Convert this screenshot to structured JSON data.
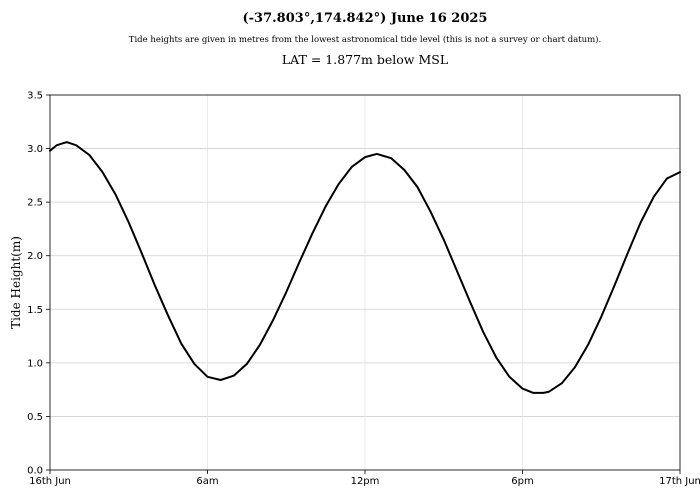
{
  "header": {
    "title": "(-37.803°,174.842°) June 16 2025",
    "subtitle": "Tide heights are given in metres from the lowest astronomical tide level (this is not a survey or chart datum).",
    "lat_note": "LAT = 1.877m below MSL"
  },
  "chart_data": {
    "type": "line",
    "title": "(-37.803°,174.842°) June 16 2025",
    "xlabel": "",
    "ylabel": "Tide Height(m)",
    "xlim": [
      0,
      24
    ],
    "ylim": [
      0,
      3.5
    ],
    "grid": true,
    "x_ticks": [
      {
        "value": 0,
        "label": "16th Jun"
      },
      {
        "value": 6,
        "label": "6am"
      },
      {
        "value": 12,
        "label": "12pm"
      },
      {
        "value": 18,
        "label": "6pm"
      },
      {
        "value": 24,
        "label": "17th Jun"
      }
    ],
    "y_ticks": [
      {
        "value": 0.0,
        "label": "0.0"
      },
      {
        "value": 0.5,
        "label": "0.5"
      },
      {
        "value": 1.0,
        "label": "1.0"
      },
      {
        "value": 1.5,
        "label": "1.5"
      },
      {
        "value": 2.0,
        "label": "2.0"
      },
      {
        "value": 2.5,
        "label": "2.5"
      },
      {
        "value": 3.0,
        "label": "3.0"
      },
      {
        "value": 3.5,
        "label": "3.5"
      }
    ],
    "series": [
      {
        "line_color": "#000000",
        "points": [
          [
            0.0,
            2.98
          ],
          [
            0.25,
            3.03
          ],
          [
            0.5,
            3.05
          ],
          [
            0.65,
            3.06
          ],
          [
            1.0,
            3.03
          ],
          [
            1.5,
            2.94
          ],
          [
            2.0,
            2.78
          ],
          [
            2.5,
            2.57
          ],
          [
            3.0,
            2.31
          ],
          [
            3.5,
            2.02
          ],
          [
            4.0,
            1.72
          ],
          [
            4.5,
            1.44
          ],
          [
            5.0,
            1.18
          ],
          [
            5.5,
            0.99
          ],
          [
            6.0,
            0.87
          ],
          [
            6.5,
            0.84
          ],
          [
            7.0,
            0.88
          ],
          [
            7.5,
            0.99
          ],
          [
            8.0,
            1.17
          ],
          [
            8.5,
            1.4
          ],
          [
            9.0,
            1.66
          ],
          [
            9.5,
            1.94
          ],
          [
            10.0,
            2.21
          ],
          [
            10.5,
            2.46
          ],
          [
            11.0,
            2.67
          ],
          [
            11.5,
            2.83
          ],
          [
            12.0,
            2.92
          ],
          [
            12.45,
            2.95
          ],
          [
            13.0,
            2.91
          ],
          [
            13.5,
            2.8
          ],
          [
            14.0,
            2.64
          ],
          [
            14.5,
            2.41
          ],
          [
            15.0,
            2.15
          ],
          [
            15.5,
            1.86
          ],
          [
            16.0,
            1.57
          ],
          [
            16.5,
            1.29
          ],
          [
            17.0,
            1.05
          ],
          [
            17.5,
            0.87
          ],
          [
            18.0,
            0.76
          ],
          [
            18.4,
            0.72
          ],
          [
            18.8,
            0.72
          ],
          [
            19.0,
            0.73
          ],
          [
            19.5,
            0.81
          ],
          [
            20.0,
            0.96
          ],
          [
            20.5,
            1.17
          ],
          [
            21.0,
            1.43
          ],
          [
            21.5,
            1.72
          ],
          [
            22.0,
            2.02
          ],
          [
            22.5,
            2.31
          ],
          [
            23.0,
            2.55
          ],
          [
            23.5,
            2.72
          ],
          [
            24.0,
            2.78
          ]
        ]
      }
    ]
  }
}
